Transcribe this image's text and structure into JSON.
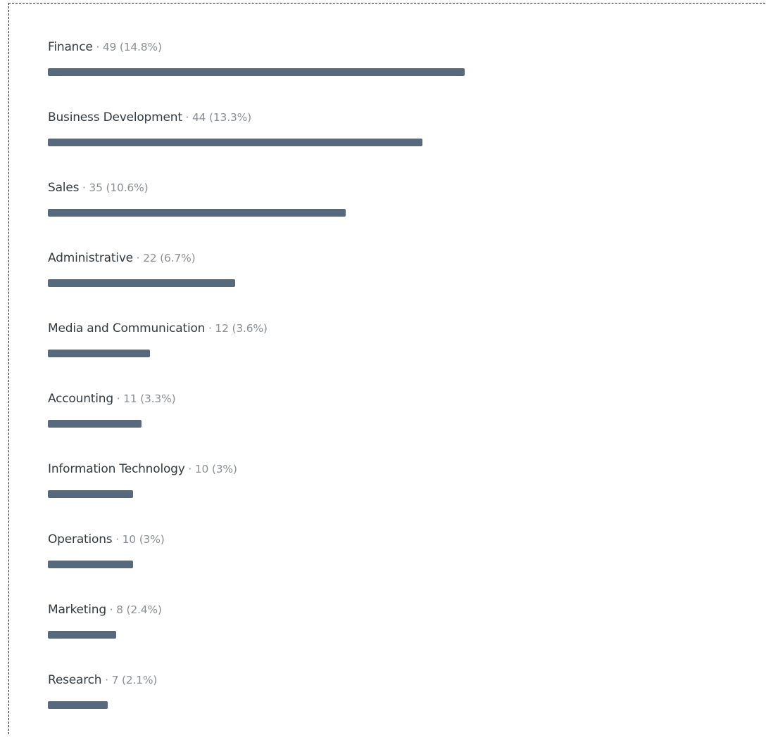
{
  "colors": {
    "bar": "#576a7d"
  },
  "chart_data": {
    "type": "bar",
    "orientation": "horizontal",
    "categories": [
      "Finance",
      "Business Development",
      "Sales",
      "Administrative",
      "Media and Communication",
      "Accounting",
      "Information Technology",
      "Operations",
      "Marketing",
      "Research"
    ],
    "values": [
      49,
      44,
      35,
      22,
      12,
      11,
      10,
      10,
      8,
      7
    ],
    "percent_labels": [
      "14.8%",
      "13.3%",
      "10.6%",
      "6.7%",
      "3.6%",
      "3.3%",
      "3%",
      "3%",
      "2.4%",
      "2.1%"
    ],
    "grid": false,
    "legend": "none"
  }
}
